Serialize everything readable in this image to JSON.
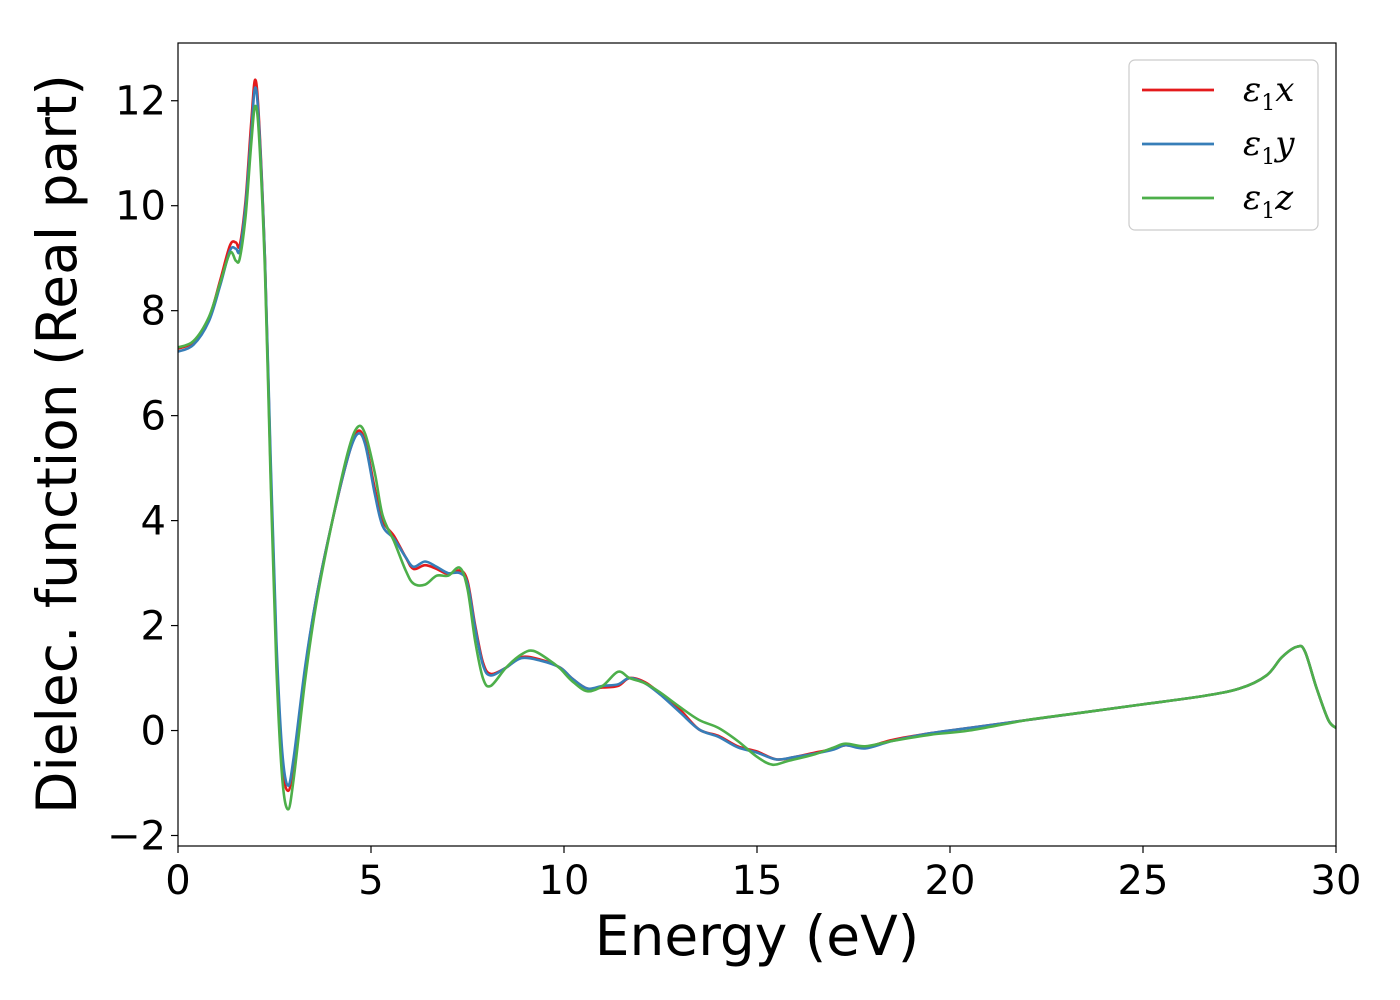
{
  "chart_data": {
    "type": "line",
    "title": "",
    "xlabel": "Energy (eV)",
    "ylabel": "Dielec. function (Real part)",
    "xlim": [
      0,
      30
    ],
    "ylim": [
      -2.2,
      13.1
    ],
    "xticks": [
      0,
      5,
      10,
      15,
      20,
      25,
      30
    ],
    "xtick_labels": [
      "0",
      "5",
      "10",
      "15",
      "20",
      "25",
      "30"
    ],
    "yticks": [
      -2,
      0,
      2,
      4,
      6,
      8,
      10,
      12
    ],
    "ytick_labels": [
      "−2",
      "0",
      "2",
      "4",
      "6",
      "8",
      "10",
      "12"
    ],
    "grid": false,
    "legend_position": "top-right",
    "series": [
      {
        "name": "ε₁x",
        "legend_main": "ε",
        "legend_sub": "1",
        "legend_var": "x",
        "color": "#e41a1c",
        "points": [
          [
            0,
            7.28
          ],
          [
            0.4,
            7.4
          ],
          [
            0.8,
            7.85
          ],
          [
            1.1,
            8.6
          ],
          [
            1.35,
            9.25
          ],
          [
            1.5,
            9.3
          ],
          [
            1.6,
            9.25
          ],
          [
            1.75,
            10.1
          ],
          [
            1.9,
            11.6
          ],
          [
            2.0,
            12.4
          ],
          [
            2.1,
            11.6
          ],
          [
            2.25,
            9.0
          ],
          [
            2.4,
            5.0
          ],
          [
            2.55,
            1.5
          ],
          [
            2.7,
            -0.6
          ],
          [
            2.85,
            -1.15
          ],
          [
            3.0,
            -0.6
          ],
          [
            3.3,
            1.2
          ],
          [
            3.6,
            2.6
          ],
          [
            4.0,
            4.0
          ],
          [
            4.4,
            5.2
          ],
          [
            4.65,
            5.7
          ],
          [
            4.85,
            5.5
          ],
          [
            5.1,
            4.6
          ],
          [
            5.3,
            4.0
          ],
          [
            5.6,
            3.7
          ],
          [
            5.9,
            3.3
          ],
          [
            6.1,
            3.08
          ],
          [
            6.4,
            3.15
          ],
          [
            6.7,
            3.08
          ],
          [
            7.0,
            2.98
          ],
          [
            7.3,
            3.05
          ],
          [
            7.5,
            2.85
          ],
          [
            7.7,
            2.0
          ],
          [
            7.9,
            1.3
          ],
          [
            8.1,
            1.08
          ],
          [
            8.5,
            1.2
          ],
          [
            8.9,
            1.4
          ],
          [
            9.4,
            1.35
          ],
          [
            9.9,
            1.2
          ],
          [
            10.2,
            1.0
          ],
          [
            10.6,
            0.8
          ],
          [
            11.0,
            0.82
          ],
          [
            11.4,
            0.85
          ],
          [
            11.7,
            1.0
          ],
          [
            12.1,
            0.92
          ],
          [
            12.5,
            0.7
          ],
          [
            13.0,
            0.4
          ],
          [
            13.5,
            0.02
          ],
          [
            14.0,
            -0.1
          ],
          [
            14.5,
            -0.3
          ],
          [
            15.0,
            -0.4
          ],
          [
            15.5,
            -0.55
          ],
          [
            16.0,
            -0.5
          ],
          [
            16.5,
            -0.42
          ],
          [
            17.0,
            -0.35
          ],
          [
            17.3,
            -0.28
          ],
          [
            17.8,
            -0.32
          ],
          [
            18.5,
            -0.18
          ],
          [
            19.5,
            -0.05
          ],
          [
            20.5,
            0.05
          ],
          [
            22.0,
            0.2
          ],
          [
            23.5,
            0.35
          ],
          [
            25.0,
            0.5
          ],
          [
            26.5,
            0.65
          ],
          [
            27.5,
            0.8
          ],
          [
            28.2,
            1.05
          ],
          [
            28.6,
            1.4
          ],
          [
            29.0,
            1.6
          ],
          [
            29.2,
            1.5
          ],
          [
            29.5,
            0.8
          ],
          [
            29.8,
            0.2
          ],
          [
            30.0,
            0.05
          ]
        ]
      },
      {
        "name": "ε₁y",
        "legend_main": "ε",
        "legend_sub": "1",
        "legend_var": "y",
        "color": "#377eb8",
        "points": [
          [
            0,
            7.22
          ],
          [
            0.4,
            7.35
          ],
          [
            0.8,
            7.8
          ],
          [
            1.1,
            8.5
          ],
          [
            1.35,
            9.15
          ],
          [
            1.5,
            9.18
          ],
          [
            1.6,
            9.15
          ],
          [
            1.75,
            10.0
          ],
          [
            1.9,
            11.4
          ],
          [
            2.0,
            12.25
          ],
          [
            2.1,
            11.5
          ],
          [
            2.25,
            9.0
          ],
          [
            2.4,
            5.2
          ],
          [
            2.55,
            1.7
          ],
          [
            2.7,
            -0.4
          ],
          [
            2.85,
            -1.05
          ],
          [
            3.0,
            -0.5
          ],
          [
            3.3,
            1.25
          ],
          [
            3.6,
            2.6
          ],
          [
            4.0,
            4.0
          ],
          [
            4.4,
            5.2
          ],
          [
            4.65,
            5.65
          ],
          [
            4.85,
            5.45
          ],
          [
            5.1,
            4.5
          ],
          [
            5.3,
            3.9
          ],
          [
            5.6,
            3.65
          ],
          [
            5.9,
            3.3
          ],
          [
            6.1,
            3.12
          ],
          [
            6.4,
            3.22
          ],
          [
            6.7,
            3.12
          ],
          [
            7.0,
            3.0
          ],
          [
            7.3,
            3.0
          ],
          [
            7.5,
            2.8
          ],
          [
            7.7,
            1.95
          ],
          [
            7.9,
            1.25
          ],
          [
            8.1,
            1.05
          ],
          [
            8.5,
            1.2
          ],
          [
            8.9,
            1.38
          ],
          [
            9.4,
            1.33
          ],
          [
            9.9,
            1.2
          ],
          [
            10.2,
            1.0
          ],
          [
            10.6,
            0.8
          ],
          [
            11.0,
            0.85
          ],
          [
            11.4,
            0.88
          ],
          [
            11.7,
            1.0
          ],
          [
            12.1,
            0.9
          ],
          [
            12.5,
            0.68
          ],
          [
            13.0,
            0.35
          ],
          [
            13.5,
            0.02
          ],
          [
            14.0,
            -0.12
          ],
          [
            14.5,
            -0.32
          ],
          [
            15.0,
            -0.42
          ],
          [
            15.5,
            -0.55
          ],
          [
            16.0,
            -0.5
          ],
          [
            16.5,
            -0.44
          ],
          [
            17.0,
            -0.36
          ],
          [
            17.3,
            -0.28
          ],
          [
            17.8,
            -0.34
          ],
          [
            18.5,
            -0.2
          ],
          [
            19.5,
            -0.05
          ],
          [
            20.5,
            0.05
          ],
          [
            22.0,
            0.2
          ],
          [
            23.5,
            0.35
          ],
          [
            25.0,
            0.5
          ],
          [
            26.5,
            0.65
          ],
          [
            27.5,
            0.8
          ],
          [
            28.2,
            1.05
          ],
          [
            28.6,
            1.4
          ],
          [
            29.0,
            1.6
          ],
          [
            29.2,
            1.5
          ],
          [
            29.5,
            0.8
          ],
          [
            29.8,
            0.2
          ],
          [
            30.0,
            0.05
          ]
        ]
      },
      {
        "name": "ε₁z",
        "legend_main": "ε",
        "legend_sub": "1",
        "legend_var": "z",
        "color": "#4daf4a",
        "points": [
          [
            0,
            7.3
          ],
          [
            0.4,
            7.42
          ],
          [
            0.8,
            7.88
          ],
          [
            1.1,
            8.55
          ],
          [
            1.35,
            9.1
          ],
          [
            1.5,
            8.95
          ],
          [
            1.6,
            9.0
          ],
          [
            1.75,
            9.8
          ],
          [
            1.9,
            11.2
          ],
          [
            2.0,
            11.9
          ],
          [
            2.1,
            11.3
          ],
          [
            2.25,
            8.8
          ],
          [
            2.4,
            4.8
          ],
          [
            2.55,
            1.2
          ],
          [
            2.7,
            -0.9
          ],
          [
            2.85,
            -1.5
          ],
          [
            3.0,
            -0.9
          ],
          [
            3.3,
            1.0
          ],
          [
            3.6,
            2.5
          ],
          [
            4.0,
            4.0
          ],
          [
            4.4,
            5.3
          ],
          [
            4.65,
            5.78
          ],
          [
            4.85,
            5.65
          ],
          [
            5.1,
            4.9
          ],
          [
            5.3,
            4.1
          ],
          [
            5.6,
            3.6
          ],
          [
            5.9,
            3.05
          ],
          [
            6.1,
            2.8
          ],
          [
            6.4,
            2.78
          ],
          [
            6.7,
            2.95
          ],
          [
            7.0,
            2.95
          ],
          [
            7.3,
            3.1
          ],
          [
            7.5,
            2.7
          ],
          [
            7.7,
            1.7
          ],
          [
            7.9,
            1.0
          ],
          [
            8.1,
            0.85
          ],
          [
            8.5,
            1.2
          ],
          [
            8.9,
            1.45
          ],
          [
            9.2,
            1.52
          ],
          [
            9.6,
            1.35
          ],
          [
            9.9,
            1.18
          ],
          [
            10.2,
            0.95
          ],
          [
            10.6,
            0.75
          ],
          [
            11.0,
            0.85
          ],
          [
            11.4,
            1.12
          ],
          [
            11.7,
            1.0
          ],
          [
            12.1,
            0.9
          ],
          [
            12.5,
            0.72
          ],
          [
            13.0,
            0.45
          ],
          [
            13.5,
            0.2
          ],
          [
            14.0,
            0.05
          ],
          [
            14.5,
            -0.2
          ],
          [
            15.0,
            -0.5
          ],
          [
            15.4,
            -0.65
          ],
          [
            15.8,
            -0.58
          ],
          [
            16.5,
            -0.45
          ],
          [
            17.0,
            -0.32
          ],
          [
            17.3,
            -0.25
          ],
          [
            17.8,
            -0.3
          ],
          [
            18.5,
            -0.2
          ],
          [
            19.5,
            -0.08
          ],
          [
            20.5,
            0.0
          ],
          [
            22.0,
            0.2
          ],
          [
            23.5,
            0.35
          ],
          [
            25.0,
            0.5
          ],
          [
            26.5,
            0.65
          ],
          [
            27.5,
            0.8
          ],
          [
            28.2,
            1.05
          ],
          [
            28.6,
            1.4
          ],
          [
            29.0,
            1.6
          ],
          [
            29.2,
            1.5
          ],
          [
            29.5,
            0.8
          ],
          [
            29.8,
            0.2
          ],
          [
            30.0,
            0.05
          ]
        ]
      }
    ]
  }
}
